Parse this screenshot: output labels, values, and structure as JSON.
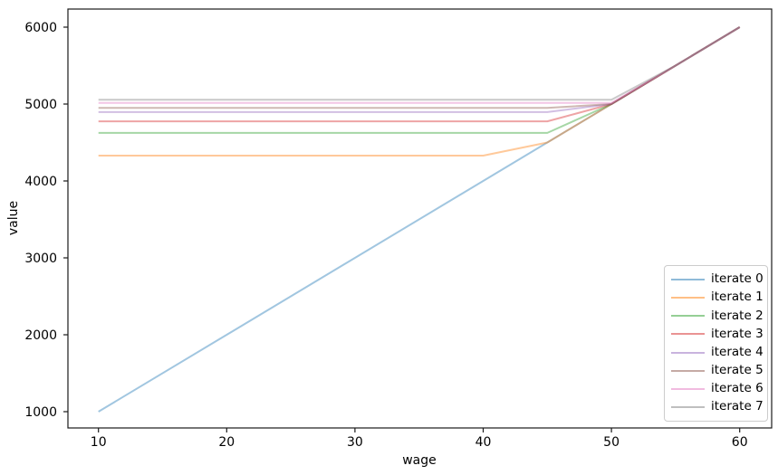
{
  "chart_data": {
    "type": "line",
    "title": "",
    "xlabel": "wage",
    "ylabel": "value",
    "x_ticks": [
      10,
      20,
      30,
      40,
      50,
      60
    ],
    "y_ticks": [
      1000,
      2000,
      3000,
      4000,
      5000,
      6000
    ],
    "xlim": [
      10,
      60
    ],
    "ylim": [
      1000,
      6000
    ],
    "grid": false,
    "legend_position": "lower right",
    "line_opacity": 0.42,
    "line_width": 2,
    "axis_color": "#1a1a1a",
    "series": [
      {
        "name": "iterate 0",
        "color": "#1f77b4",
        "points": [
          [
            10,
            1000
          ],
          [
            60,
            6000
          ]
        ]
      },
      {
        "name": "iterate 1",
        "color": "#ff7f0e",
        "points": [
          [
            10,
            4330
          ],
          [
            40,
            4330
          ],
          [
            45,
            4500
          ],
          [
            50,
            5000
          ],
          [
            55,
            5500
          ],
          [
            60,
            6000
          ]
        ]
      },
      {
        "name": "iterate 2",
        "color": "#2ca02c",
        "points": [
          [
            10,
            4625
          ],
          [
            45,
            4625
          ],
          [
            50,
            5000
          ],
          [
            55,
            5500
          ],
          [
            60,
            6000
          ]
        ]
      },
      {
        "name": "iterate 3",
        "color": "#d62728",
        "points": [
          [
            10,
            4775
          ],
          [
            45,
            4775
          ],
          [
            50,
            5000
          ],
          [
            55,
            5500
          ],
          [
            60,
            6000
          ]
        ]
      },
      {
        "name": "iterate 4",
        "color": "#9467bd",
        "points": [
          [
            10,
            4895
          ],
          [
            45,
            4895
          ],
          [
            50,
            5000
          ],
          [
            55,
            5500
          ],
          [
            60,
            6000
          ]
        ]
      },
      {
        "name": "iterate 5",
        "color": "#8c564b",
        "points": [
          [
            10,
            4950
          ],
          [
            45,
            4950
          ],
          [
            50,
            5000
          ],
          [
            55,
            5500
          ],
          [
            60,
            6000
          ]
        ]
      },
      {
        "name": "iterate 6",
        "color": "#e377c2",
        "points": [
          [
            10,
            5015
          ],
          [
            50,
            5015
          ],
          [
            55,
            5500
          ],
          [
            60,
            6000
          ]
        ]
      },
      {
        "name": "iterate 7",
        "color": "#7f7f7f",
        "points": [
          [
            10,
            5055
          ],
          [
            50,
            5055
          ],
          [
            55,
            5500
          ],
          [
            60,
            6000
          ]
        ]
      }
    ]
  }
}
